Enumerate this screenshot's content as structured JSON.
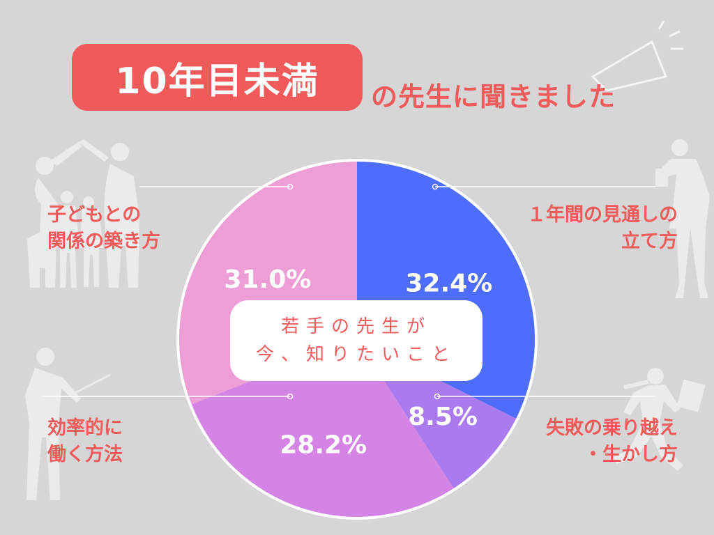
{
  "title": {
    "badge": "10年目未満",
    "subtitle": "の先生に聞きました"
  },
  "center": {
    "line1": "若手の先生が",
    "line2": "今、知りたいこと"
  },
  "labels": {
    "top_left": [
      "子どもとの",
      "関係の築き方"
    ],
    "top_right": [
      "１年間の見通しの",
      "立て方"
    ],
    "bottom_left": [
      "効率的に",
      "働く方法"
    ],
    "bottom_right": [
      "失敗の乗り越え",
      "・生かし方"
    ]
  },
  "colors": {
    "accent": "#f05a5a",
    "background": "#d6d6d6"
  },
  "chart_data": {
    "type": "pie",
    "start": "12 o'clock",
    "direction": "clockwise",
    "slices": [
      {
        "label": "１年間の見通しの立て方",
        "value": 32.4,
        "display": "32.4%",
        "color": "#4f6dfb"
      },
      {
        "label": "失敗の乗り越え・生かし方",
        "value": 8.5,
        "display": "8.5%",
        "color": "#a97bef"
      },
      {
        "label": "効率的に働く方法",
        "value": 28.2,
        "display": "28.2%",
        "color": "#d484e4"
      },
      {
        "label": "子どもとの関係の築き方",
        "value": 31.0,
        "display": "31.0%",
        "color": "#ee9ed7"
      }
    ]
  }
}
